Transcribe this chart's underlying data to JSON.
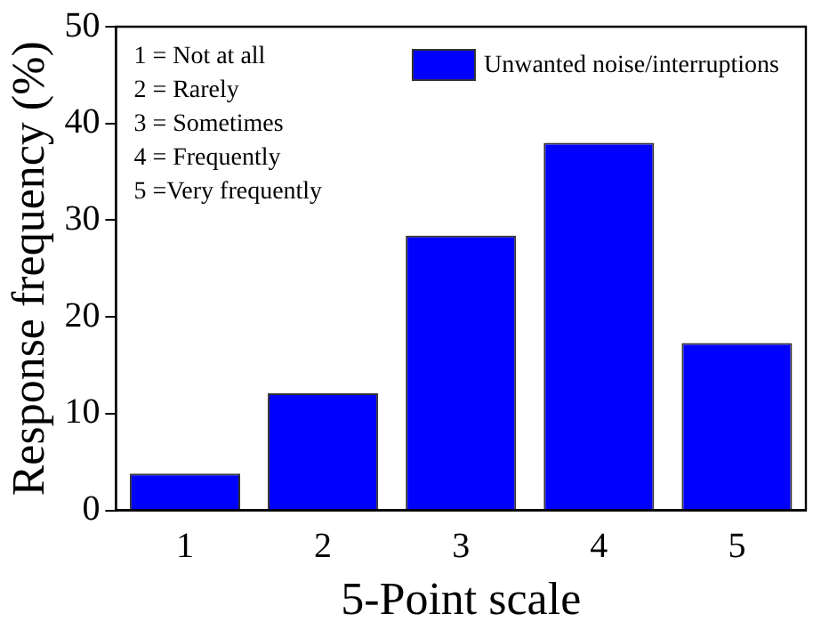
{
  "chart_data": {
    "type": "bar",
    "xlabel": "5-Point scale",
    "ylabel": "Response frequency (%)",
    "categories": [
      "1",
      "2",
      "3",
      "4",
      "5"
    ],
    "series": [
      {
        "name": "Unwanted noise/interruptions",
        "color": "#0000ff",
        "values": [
          3.8,
          12.1,
          28.4,
          38.0,
          17.3
        ]
      }
    ],
    "ylim": [
      0,
      50
    ],
    "yticks": [
      0,
      10,
      20,
      30,
      40,
      50
    ],
    "grid": false,
    "legend": "top right",
    "annotations": [
      "1 = Not at all",
      "2 = Rarely",
      "3 = Sometimes",
      "4 = Frequently",
      "5 =Very frequently"
    ]
  }
}
